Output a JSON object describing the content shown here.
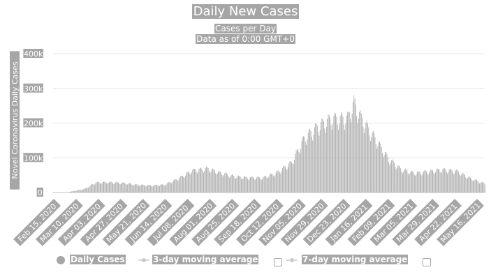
{
  "chart_data": {
    "type": "bar",
    "title": "Daily New Cases",
    "subtitle": [
      "Cases per Day",
      "Data as of 0:00 GMT+0"
    ],
    "ylabel": "Novel Coronavirus Daily Cases",
    "xlabel": "",
    "ylim": [
      0,
      400000
    ],
    "y_ticks": [
      "0",
      "100k",
      "200k",
      "300k",
      "400k"
    ],
    "grid": true,
    "x_range": [
      "2020-02-15",
      "2021-05-31"
    ],
    "x_ticks": [
      "Feb 15, 2020",
      "Mar 10, 2020",
      "Apr 03, 2020",
      "Apr 27, 2020",
      "May 21, 2020",
      "Jun 14, 2020",
      "Jul 08, 2020",
      "Aug 01, 2020",
      "Aug 25, 2020",
      "Sep 18, 2020",
      "Oct 12, 2020",
      "Nov 05, 2020",
      "Nov 29, 2020",
      "Dec 23, 2020",
      "Jan 16, 2021",
      "Feb 09, 2021",
      "Mar 05, 2021",
      "Mar 29, 2021",
      "Apr 22, 2021",
      "May 16, 2021"
    ],
    "legend_position": "bottom",
    "series": [
      {
        "name": "Daily Cases",
        "color": "#a6a6a6",
        "x": [
          "2020-02-15",
          "2020-03-01",
          "2020-03-20",
          "2020-04-01",
          "2020-04-15",
          "2020-05-01",
          "2020-05-15",
          "2020-06-01",
          "2020-06-15",
          "2020-07-01",
          "2020-07-15",
          "2020-08-01",
          "2020-08-15",
          "2020-09-01",
          "2020-09-15",
          "2020-10-01",
          "2020-10-15",
          "2020-11-01",
          "2020-11-15",
          "2020-12-01",
          "2020-12-15",
          "2021-01-01",
          "2021-01-08",
          "2021-01-15",
          "2021-02-01",
          "2021-02-15",
          "2021-03-01",
          "2021-03-15",
          "2021-04-01",
          "2021-04-15",
          "2021-05-01",
          "2021-05-15",
          "2021-05-31"
        ],
        "values": [
          0,
          500,
          10000,
          28000,
          29000,
          27000,
          22000,
          20000,
          22000,
          40000,
          62000,
          68000,
          56000,
          45000,
          42000,
          42000,
          55000,
          85000,
          155000,
          190000,
          210000,
          210000,
          255000,
          215000,
          150000,
          95000,
          65000,
          55000,
          60000,
          65000,
          60000,
          40000,
          25000
        ]
      },
      {
        "name": "3-day moving average",
        "color": "#cccccc",
        "visible": false
      },
      {
        "name": "7-day moving average",
        "color": "#cccccc",
        "visible": false
      }
    ]
  }
}
